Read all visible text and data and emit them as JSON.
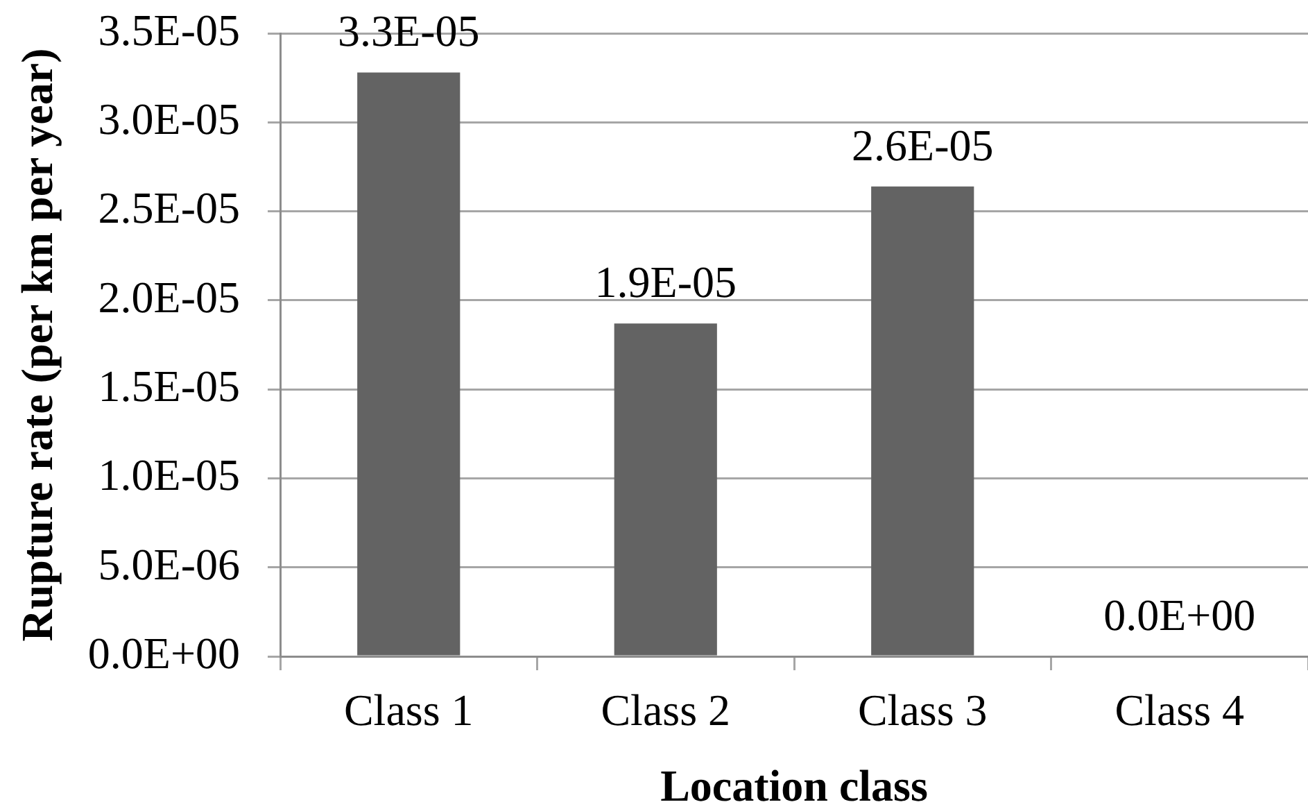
{
  "chart_data": {
    "type": "bar",
    "xlabel": "Location class",
    "ylabel": "Rupture rate (per km per year)",
    "categories": [
      "Class 1",
      "Class 2",
      "Class 3",
      "Class 4"
    ],
    "values": [
      3.28e-05,
      1.87e-05,
      2.64e-05,
      0
    ],
    "color": "#636363",
    "value_labels": [
      "3.3E-05",
      "1.9E-05",
      "2.6E-05",
      "0.0E+00"
    ],
    "ylim": [
      0,
      3.5e-05
    ],
    "yticks": [
      {
        "value": 0,
        "label": "0.0E+00"
      },
      {
        "value": 5e-06,
        "label": "5.0E-06"
      },
      {
        "value": 1e-05,
        "label": "1.0E-05"
      },
      {
        "value": 1.5e-05,
        "label": "1.5E-05"
      },
      {
        "value": 2e-05,
        "label": "2.0E-05"
      },
      {
        "value": 2.5e-05,
        "label": "2.5E-05"
      },
      {
        "value": 3e-05,
        "label": "3.0E-05"
      },
      {
        "value": 3.5e-05,
        "label": "3.5E-05"
      }
    ],
    "grid": "y"
  }
}
